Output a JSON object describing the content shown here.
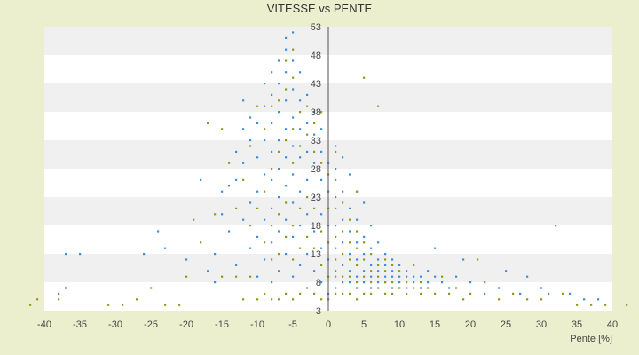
{
  "chart_data": {
    "type": "scatter",
    "title": "VITESSE vs PENTE",
    "xlabel": "Pente [%]",
    "ylabel": "",
    "xlim": [
      -40,
      40
    ],
    "ylim": [
      3,
      53
    ],
    "x_ticks": [
      -40,
      -35,
      -30,
      -25,
      -20,
      -15,
      -10,
      -5,
      0,
      5,
      10,
      15,
      20,
      25,
      30,
      35,
      40
    ],
    "y_ticks": [
      3,
      8,
      13,
      18,
      23,
      28,
      33,
      38,
      43,
      48,
      53
    ],
    "x_tick_labels": [
      "-40",
      "-35",
      "-30",
      "-25",
      "-20",
      "-15",
      "-10",
      "-5",
      "0",
      "5",
      "10",
      "15",
      "20",
      "25",
      "30",
      "35",
      "40"
    ],
    "y_tick_labels": [
      "3",
      "8",
      "13",
      "18",
      "23",
      "28",
      "33",
      "38",
      "43",
      "48",
      "53"
    ],
    "grid": "horizontal alternating bands",
    "legend": "none",
    "series": [
      {
        "color": "#3d8fd8",
        "marker": "dot",
        "points": [
          [
            -38,
            6
          ],
          [
            -37,
            7
          ],
          [
            -37,
            13
          ],
          [
            -35,
            13
          ],
          [
            -26,
            13
          ],
          [
            -24,
            17
          ],
          [
            -23,
            14
          ],
          [
            -20,
            12
          ],
          [
            -18,
            26
          ],
          [
            -17,
            10
          ],
          [
            -16,
            8
          ],
          [
            -16,
            13
          ],
          [
            -15,
            20
          ],
          [
            -15,
            24
          ],
          [
            -14,
            17
          ],
          [
            -14,
            25
          ],
          [
            -13,
            11
          ],
          [
            -13,
            26
          ],
          [
            -13,
            31
          ],
          [
            -12,
            19
          ],
          [
            -12,
            29
          ],
          [
            -12,
            35
          ],
          [
            -12,
            40
          ],
          [
            -11,
            14
          ],
          [
            -11,
            22
          ],
          [
            -11,
            33
          ],
          [
            -11,
            37
          ],
          [
            -10,
            9
          ],
          [
            -10,
            16
          ],
          [
            -10,
            24
          ],
          [
            -10,
            30
          ],
          [
            -10,
            36
          ],
          [
            -9,
            12
          ],
          [
            -9,
            19
          ],
          [
            -9,
            27
          ],
          [
            -9,
            33
          ],
          [
            -9,
            39
          ],
          [
            -9,
            43
          ],
          [
            -8,
            8
          ],
          [
            -8,
            15
          ],
          [
            -8,
            21
          ],
          [
            -8,
            26
          ],
          [
            -8,
            31
          ],
          [
            -8,
            36
          ],
          [
            -8,
            41
          ],
          [
            -8,
            45
          ],
          [
            -7,
            10
          ],
          [
            -7,
            17
          ],
          [
            -7,
            23
          ],
          [
            -7,
            28
          ],
          [
            -7,
            33
          ],
          [
            -7,
            38
          ],
          [
            -7,
            43
          ],
          [
            -7,
            47
          ],
          [
            -6,
            13
          ],
          [
            -6,
            19
          ],
          [
            -6,
            25
          ],
          [
            -6,
            30
          ],
          [
            -6,
            35
          ],
          [
            -6,
            40
          ],
          [
            -6,
            45
          ],
          [
            -6,
            49
          ],
          [
            -6,
            51
          ],
          [
            -5,
            9
          ],
          [
            -5,
            16
          ],
          [
            -5,
            22
          ],
          [
            -5,
            27
          ],
          [
            -5,
            32
          ],
          [
            -5,
            37
          ],
          [
            -5,
            42
          ],
          [
            -5,
            47
          ],
          [
            -5,
            52
          ],
          [
            -4,
            11
          ],
          [
            -4,
            18
          ],
          [
            -4,
            24
          ],
          [
            -4,
            30
          ],
          [
            -4,
            35
          ],
          [
            -4,
            40
          ],
          [
            -4,
            45
          ],
          [
            -3,
            13
          ],
          [
            -3,
            20
          ],
          [
            -3,
            26
          ],
          [
            -3,
            31
          ],
          [
            -3,
            36
          ],
          [
            -3,
            41
          ],
          [
            -2,
            10
          ],
          [
            -2,
            17
          ],
          [
            -2,
            23
          ],
          [
            -2,
            29
          ],
          [
            -2,
            34
          ],
          [
            -2,
            38
          ],
          [
            -1,
            8
          ],
          [
            -1,
            14
          ],
          [
            -1,
            20
          ],
          [
            -1,
            26
          ],
          [
            -1,
            31
          ],
          [
            -1,
            35
          ],
          [
            0,
            6
          ],
          [
            0,
            12
          ],
          [
            0,
            18
          ],
          [
            0,
            24
          ],
          [
            0,
            29
          ],
          [
            1,
            7
          ],
          [
            1,
            10
          ],
          [
            1,
            14
          ],
          [
            1,
            18
          ],
          [
            1,
            23
          ],
          [
            1,
            28
          ],
          [
            1,
            32
          ],
          [
            2,
            8
          ],
          [
            2,
            11
          ],
          [
            2,
            15
          ],
          [
            2,
            19
          ],
          [
            2,
            24
          ],
          [
            2,
            30
          ],
          [
            3,
            8
          ],
          [
            3,
            10
          ],
          [
            3,
            13
          ],
          [
            3,
            17
          ],
          [
            3,
            21
          ],
          [
            3,
            27
          ],
          [
            4,
            7
          ],
          [
            4,
            9
          ],
          [
            4,
            12
          ],
          [
            4,
            15
          ],
          [
            4,
            19
          ],
          [
            4,
            24
          ],
          [
            5,
            8
          ],
          [
            5,
            10
          ],
          [
            5,
            13
          ],
          [
            5,
            16
          ],
          [
            5,
            22
          ],
          [
            6,
            7
          ],
          [
            6,
            9
          ],
          [
            6,
            11
          ],
          [
            6,
            14
          ],
          [
            6,
            18
          ],
          [
            7,
            8
          ],
          [
            7,
            10
          ],
          [
            7,
            12
          ],
          [
            7,
            15
          ],
          [
            8,
            8
          ],
          [
            8,
            9
          ],
          [
            8,
            11
          ],
          [
            8,
            13
          ],
          [
            9,
            7
          ],
          [
            9,
            9
          ],
          [
            9,
            10
          ],
          [
            9,
            12
          ],
          [
            10,
            8
          ],
          [
            10,
            9
          ],
          [
            10,
            11
          ],
          [
            11,
            7
          ],
          [
            11,
            9
          ],
          [
            11,
            10
          ],
          [
            12,
            8
          ],
          [
            12,
            9
          ],
          [
            13,
            7
          ],
          [
            13,
            9
          ],
          [
            14,
            8
          ],
          [
            14,
            10
          ],
          [
            15,
            9
          ],
          [
            15,
            14
          ],
          [
            16,
            8
          ],
          [
            17,
            7
          ],
          [
            18,
            9
          ],
          [
            19,
            12
          ],
          [
            20,
            8
          ],
          [
            22,
            6
          ],
          [
            24,
            7
          ],
          [
            25,
            10
          ],
          [
            27,
            6
          ],
          [
            28,
            9
          ],
          [
            30,
            7
          ],
          [
            31,
            6
          ],
          [
            32,
            18
          ],
          [
            34,
            6
          ],
          [
            36,
            5
          ],
          [
            38,
            5
          ]
        ]
      },
      {
        "color": "#8f9a1c",
        "marker": "dot",
        "points": [
          [
            -42,
            4
          ],
          [
            -41,
            5
          ],
          [
            -38,
            5
          ],
          [
            -31,
            4
          ],
          [
            -29,
            4
          ],
          [
            -27,
            5
          ],
          [
            -25,
            7
          ],
          [
            -23,
            4
          ],
          [
            -21,
            4
          ],
          [
            -20,
            9
          ],
          [
            -19,
            19
          ],
          [
            -18,
            15
          ],
          [
            -17,
            36
          ],
          [
            -16,
            20
          ],
          [
            -15,
            9
          ],
          [
            -15,
            35
          ],
          [
            -14,
            29
          ],
          [
            -13,
            21
          ],
          [
            -13,
            9
          ],
          [
            -12,
            5
          ],
          [
            -12,
            26
          ],
          [
            -11,
            9
          ],
          [
            -11,
            18
          ],
          [
            -11,
            32
          ],
          [
            -10,
            5
          ],
          [
            -10,
            21
          ],
          [
            -10,
            39
          ],
          [
            -9,
            6
          ],
          [
            -9,
            15
          ],
          [
            -9,
            24
          ],
          [
            -9,
            35
          ],
          [
            -8,
            5
          ],
          [
            -8,
            12
          ],
          [
            -8,
            18
          ],
          [
            -8,
            28
          ],
          [
            -8,
            39
          ],
          [
            -7,
            5
          ],
          [
            -7,
            13
          ],
          [
            -7,
            20
          ],
          [
            -7,
            31
          ],
          [
            -7,
            40
          ],
          [
            -6,
            6
          ],
          [
            -6,
            16
          ],
          [
            -6,
            22
          ],
          [
            -6,
            33
          ],
          [
            -6,
            42
          ],
          [
            -6,
            47
          ],
          [
            -5,
            5
          ],
          [
            -5,
            12
          ],
          [
            -5,
            18
          ],
          [
            -5,
            29
          ],
          [
            -5,
            35
          ],
          [
            -5,
            44
          ],
          [
            -5,
            49
          ],
          [
            -4,
            6
          ],
          [
            -4,
            14
          ],
          [
            -4,
            21
          ],
          [
            -4,
            32
          ],
          [
            -4,
            38
          ],
          [
            -3,
            7
          ],
          [
            -3,
            16
          ],
          [
            -3,
            23
          ],
          [
            -3,
            34
          ],
          [
            -3,
            39
          ],
          [
            -2,
            6
          ],
          [
            -2,
            14
          ],
          [
            -2,
            21
          ],
          [
            -2,
            31
          ],
          [
            -2,
            36
          ],
          [
            -1,
            5
          ],
          [
            -1,
            11
          ],
          [
            -1,
            17
          ],
          [
            -1,
            29
          ],
          [
            -1,
            38
          ],
          [
            0,
            5
          ],
          [
            0,
            9
          ],
          [
            0,
            15
          ],
          [
            0,
            21
          ],
          [
            0,
            27
          ],
          [
            1,
            6
          ],
          [
            1,
            9
          ],
          [
            1,
            12
          ],
          [
            1,
            16
          ],
          [
            1,
            21
          ],
          [
            1,
            26
          ],
          [
            1,
            31
          ],
          [
            2,
            6
          ],
          [
            2,
            9
          ],
          [
            2,
            13
          ],
          [
            2,
            17
          ],
          [
            2,
            22
          ],
          [
            3,
            6
          ],
          [
            3,
            9
          ],
          [
            3,
            12
          ],
          [
            3,
            15
          ],
          [
            3,
            19
          ],
          [
            4,
            5
          ],
          [
            4,
            8
          ],
          [
            4,
            11
          ],
          [
            4,
            14
          ],
          [
            4,
            17
          ],
          [
            4,
            24
          ],
          [
            5,
            6
          ],
          [
            5,
            9
          ],
          [
            5,
            12
          ],
          [
            5,
            15
          ],
          [
            5,
            44
          ],
          [
            6,
            6
          ],
          [
            6,
            8
          ],
          [
            6,
            10
          ],
          [
            6,
            13
          ],
          [
            7,
            7
          ],
          [
            7,
            9
          ],
          [
            7,
            11
          ],
          [
            7,
            39
          ],
          [
            8,
            6
          ],
          [
            8,
            8
          ],
          [
            8,
            10
          ],
          [
            8,
            12
          ],
          [
            9,
            6
          ],
          [
            9,
            8
          ],
          [
            9,
            11
          ],
          [
            10,
            7
          ],
          [
            10,
            10
          ],
          [
            11,
            6
          ],
          [
            11,
            8
          ],
          [
            12,
            7
          ],
          [
            12,
            11
          ],
          [
            13,
            6
          ],
          [
            13,
            8
          ],
          [
            14,
            7
          ],
          [
            15,
            6
          ],
          [
            16,
            9
          ],
          [
            17,
            6
          ],
          [
            18,
            7
          ],
          [
            19,
            5
          ],
          [
            20,
            6
          ],
          [
            21,
            12
          ],
          [
            22,
            8
          ],
          [
            24,
            5
          ],
          [
            26,
            6
          ],
          [
            28,
            5
          ],
          [
            30,
            5
          ],
          [
            33,
            6
          ],
          [
            35,
            4
          ],
          [
            37,
            4
          ],
          [
            39,
            4
          ],
          [
            42,
            4
          ]
        ]
      }
    ]
  }
}
